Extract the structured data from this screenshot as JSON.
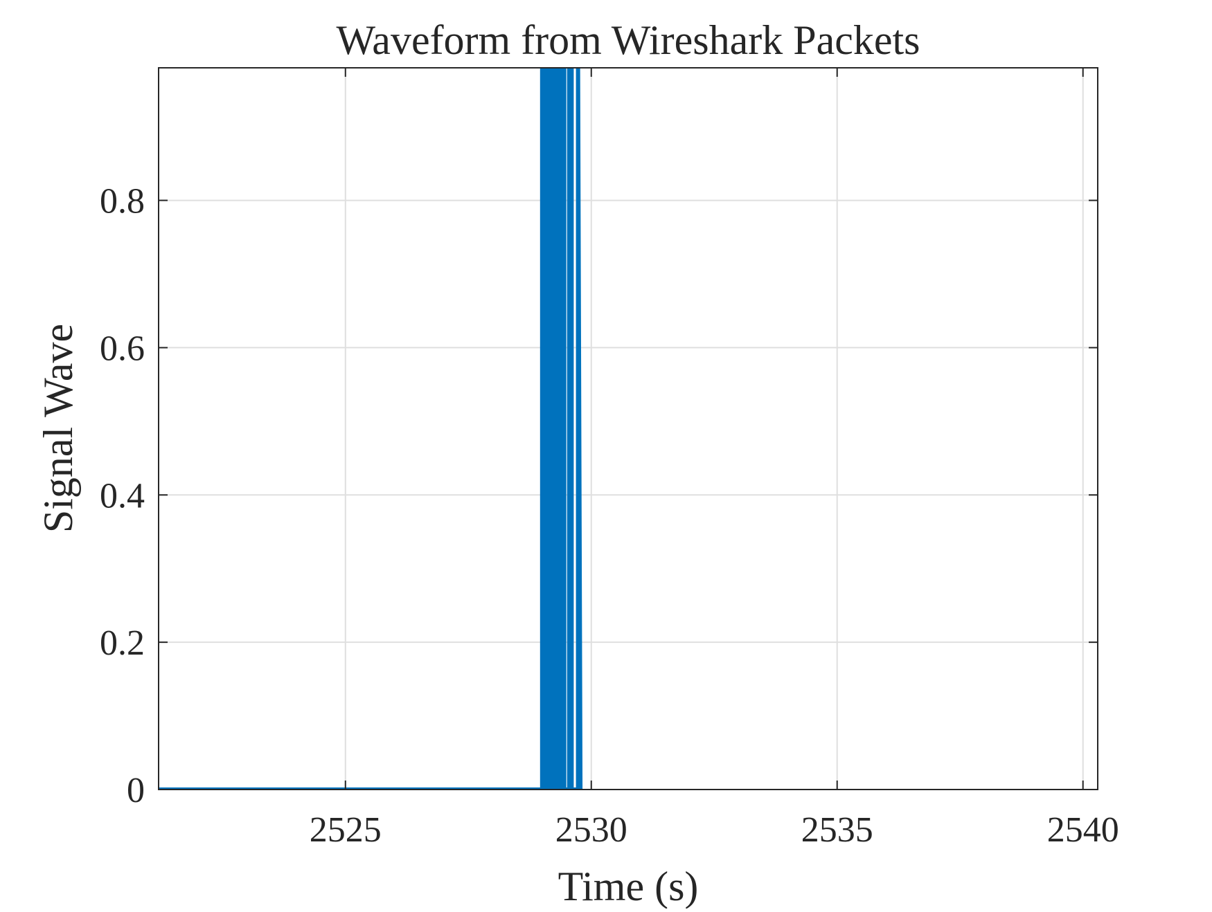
{
  "chart_data": {
    "type": "line",
    "title": "Waveform from Wireshark Packets",
    "xlabel": "Time (s)",
    "ylabel": "Signal Wave",
    "xlim": [
      2521.2,
      2540.3
    ],
    "ylim": [
      0,
      0.98
    ],
    "x_ticks": [
      2525,
      2530,
      2535,
      2540
    ],
    "y_ticks": [
      0,
      0.2,
      0.4,
      0.6,
      0.8
    ],
    "x_tick_labels": [
      "2525",
      "2530",
      "2535",
      "2540"
    ],
    "y_tick_labels": [
      "0",
      "0.2",
      "0.4",
      "0.6",
      "0.8"
    ],
    "grid": true,
    "series_color": "#0072BD",
    "series": [
      {
        "x": [
          2521.2,
          2529.0,
          2529.0,
          2529.05,
          2529.05,
          2529.1,
          2529.1,
          2529.15,
          2529.15,
          2529.2,
          2529.2,
          2529.25,
          2529.25,
          2529.3,
          2529.3,
          2529.35,
          2529.35,
          2529.4,
          2529.4,
          2529.45,
          2529.45,
          2529.55,
          2529.55,
          2529.6,
          2529.6,
          2529.73,
          2529.73,
          2529.78
        ],
        "y": [
          0,
          0,
          1,
          1,
          0,
          0,
          1,
          1,
          0,
          0,
          1,
          1,
          0,
          0,
          1,
          1,
          0,
          0,
          1,
          1,
          0,
          0,
          1,
          1,
          0,
          0,
          1,
          0
        ]
      }
    ]
  }
}
